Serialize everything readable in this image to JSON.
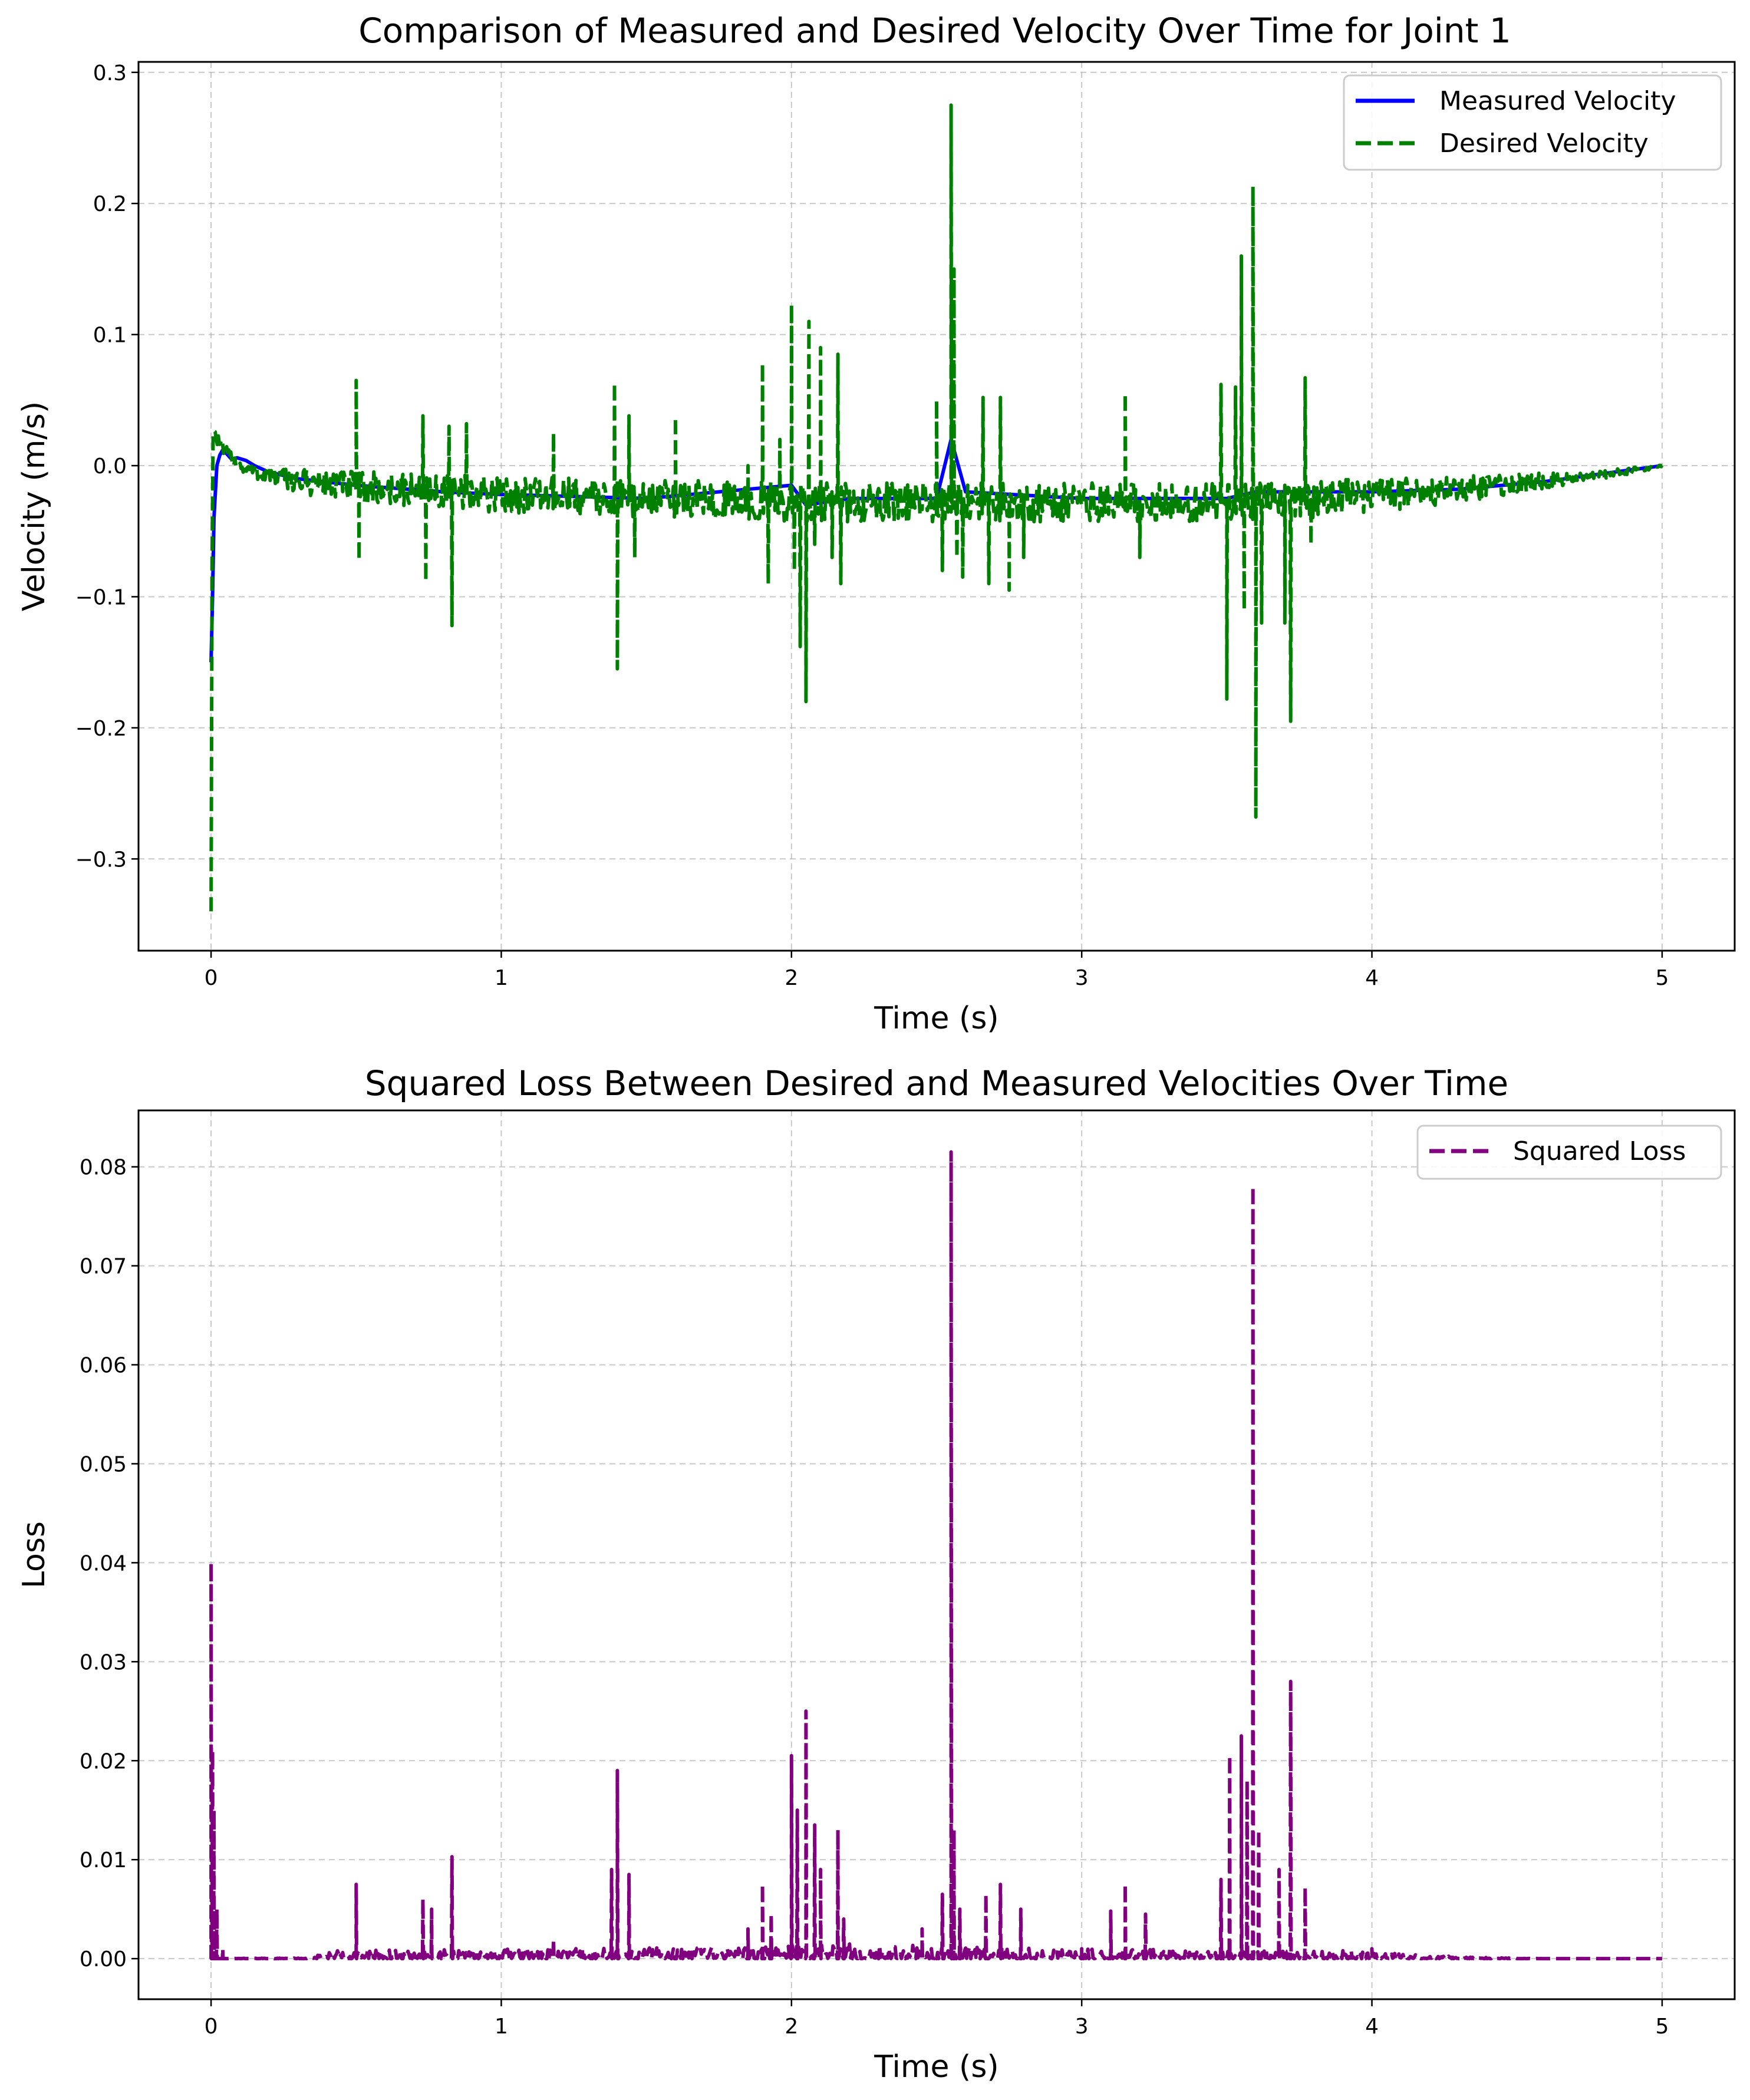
{
  "chart_data": [
    {
      "type": "line",
      "title": "Comparison of Measured and Desired Velocity Over Time for Joint 1",
      "xlabel": "Time (s)",
      "ylabel": "Velocity (m/s)",
      "xlim": [
        -0.25,
        5.25
      ],
      "ylim": [
        -0.37,
        0.308
      ],
      "xticks": [
        0,
        1,
        2,
        3,
        4,
        5
      ],
      "xtick_labels": [
        "0",
        "1",
        "2",
        "3",
        "4",
        "5"
      ],
      "yticks": [
        -0.3,
        -0.2,
        -0.1,
        0.0,
        0.1,
        0.2,
        0.3
      ],
      "ytick_labels": [
        "−0.3",
        "−0.2",
        "−0.1",
        "0.0",
        "0.1",
        "0.2",
        "0.3"
      ],
      "grid": true,
      "legend_position": "top-right",
      "series": [
        {
          "name": "Measured Velocity",
          "color": "#0000ff",
          "style": "solid",
          "x": [
            0.0,
            0.005,
            0.01,
            0.02,
            0.03,
            0.04,
            0.05,
            0.07,
            0.09,
            0.12,
            0.15,
            0.2,
            0.3,
            0.5,
            0.8,
            1.0,
            1.5,
            2.0,
            2.05,
            2.2,
            2.5,
            2.55,
            2.6,
            3.0,
            3.5,
            3.6,
            4.0,
            4.3,
            4.6,
            4.8,
            5.0
          ],
          "y": [
            -0.15,
            -0.1,
            -0.04,
            0.0,
            0.008,
            0.012,
            0.01,
            0.005,
            0.006,
            0.004,
            0.0,
            -0.005,
            -0.01,
            -0.015,
            -0.02,
            -0.022,
            -0.025,
            -0.015,
            -0.03,
            -0.025,
            -0.025,
            0.02,
            -0.02,
            -0.025,
            -0.025,
            -0.02,
            -0.02,
            -0.018,
            -0.012,
            -0.006,
            0.0
          ]
        },
        {
          "name": "Desired Velocity",
          "color": "#008000",
          "style": "dashed",
          "base": [
            [
              0.0,
              -0.34
            ],
            [
              0.005,
              0.03
            ],
            [
              0.02,
              0.02
            ],
            [
              0.05,
              0.01
            ],
            [
              0.1,
              0.0
            ],
            [
              0.15,
              -0.005
            ],
            [
              0.3,
              -0.012
            ],
            [
              0.6,
              -0.018
            ],
            [
              1.0,
              -0.022
            ],
            [
              1.5,
              -0.025
            ],
            [
              2.0,
              -0.028
            ],
            [
              2.5,
              -0.028
            ],
            [
              3.0,
              -0.028
            ],
            [
              3.5,
              -0.028
            ],
            [
              3.8,
              -0.026
            ],
            [
              4.0,
              -0.023
            ],
            [
              4.2,
              -0.02
            ],
            [
              4.5,
              -0.014
            ],
            [
              4.8,
              -0.007
            ],
            [
              5.0,
              0.0
            ]
          ],
          "noise": [
            [
              0.0,
              0.005
            ],
            [
              0.2,
              0.006
            ],
            [
              0.4,
              0.012
            ],
            [
              1.0,
              0.014
            ],
            [
              2.0,
              0.015
            ],
            [
              3.0,
              0.015
            ],
            [
              3.9,
              0.014
            ],
            [
              4.3,
              0.01
            ],
            [
              4.7,
              0.005
            ],
            [
              5.0,
              0.001
            ]
          ],
          "spikes": [
            [
              0.5,
              0.065
            ],
            [
              0.51,
              -0.072
            ],
            [
              0.73,
              0.038
            ],
            [
              0.74,
              -0.088
            ],
            [
              0.82,
              0.03
            ],
            [
              0.83,
              -0.122
            ],
            [
              0.88,
              0.032
            ],
            [
              1.18,
              0.025
            ],
            [
              1.39,
              0.063
            ],
            [
              1.4,
              -0.155
            ],
            [
              1.44,
              0.038
            ],
            [
              1.46,
              -0.07
            ],
            [
              1.6,
              0.037
            ],
            [
              1.85,
              0.0
            ],
            [
              1.9,
              0.078
            ],
            [
              1.92,
              -0.09
            ],
            [
              1.96,
              0.02
            ],
            [
              2.0,
              0.123
            ],
            [
              2.01,
              -0.08
            ],
            [
              2.03,
              -0.138
            ],
            [
              2.05,
              -0.18
            ],
            [
              2.06,
              0.11
            ],
            [
              2.08,
              -0.06
            ],
            [
              2.1,
              0.09
            ],
            [
              2.14,
              -0.07
            ],
            [
              2.16,
              0.085
            ],
            [
              2.17,
              -0.09
            ],
            [
              2.5,
              0.05
            ],
            [
              2.52,
              -0.08
            ],
            [
              2.55,
              0.275
            ],
            [
              2.56,
              0.15
            ],
            [
              2.57,
              -0.07
            ],
            [
              2.59,
              -0.085
            ],
            [
              2.66,
              0.052
            ],
            [
              2.68,
              -0.09
            ],
            [
              2.72,
              0.052
            ],
            [
              2.75,
              -0.095
            ],
            [
              2.8,
              -0.07
            ],
            [
              3.15,
              0.055
            ],
            [
              3.2,
              -0.07
            ],
            [
              3.48,
              0.062
            ],
            [
              3.5,
              -0.178
            ],
            [
              3.53,
              0.06
            ],
            [
              3.55,
              0.16
            ],
            [
              3.56,
              -0.11
            ],
            [
              3.59,
              0.213
            ],
            [
              3.6,
              -0.268
            ],
            [
              3.62,
              -0.12
            ],
            [
              3.7,
              -0.12
            ],
            [
              3.72,
              -0.195
            ],
            [
              3.77,
              0.067
            ],
            [
              3.79,
              -0.06
            ]
          ]
        }
      ]
    },
    {
      "type": "line",
      "title": "Squared Loss Between Desired and Measured Velocities Over Time",
      "xlabel": "Time (s)",
      "ylabel": "Loss",
      "xlim": [
        -0.25,
        5.25
      ],
      "ylim": [
        -0.0041,
        0.0857
      ],
      "xticks": [
        0,
        1,
        2,
        3,
        4,
        5
      ],
      "xtick_labels": [
        "0",
        "1",
        "2",
        "3",
        "4",
        "5"
      ],
      "yticks": [
        0.0,
        0.01,
        0.02,
        0.03,
        0.04,
        0.05,
        0.06,
        0.07,
        0.08
      ],
      "ytick_labels": [
        "0.00",
        "0.01",
        "0.02",
        "0.03",
        "0.04",
        "0.05",
        "0.06",
        "0.07",
        "0.08"
      ],
      "grid": true,
      "legend_position": "top-right",
      "series": [
        {
          "name": "Squared Loss",
          "color": "#800080",
          "style": "dashed",
          "base": [
            [
              0.0,
              0.0
            ],
            [
              5.0,
              0.0
            ]
          ],
          "noise": [
            [
              0.0,
              0.0
            ],
            [
              0.35,
              0.0001
            ],
            [
              0.4,
              0.0008
            ],
            [
              1.9,
              0.0012
            ],
            [
              2.2,
              0.0015
            ],
            [
              2.9,
              0.001
            ],
            [
              3.9,
              0.0008
            ],
            [
              4.3,
              0.0002
            ],
            [
              4.6,
              0.0
            ],
            [
              5.0,
              0.0
            ]
          ],
          "spikes": [
            [
              0.0,
              0.04
            ],
            [
              0.005,
              0.021
            ],
            [
              0.01,
              0.015
            ],
            [
              0.02,
              0.005
            ],
            [
              0.04,
              0.001
            ],
            [
              0.5,
              0.0075
            ],
            [
              0.73,
              0.006
            ],
            [
              0.76,
              0.005
            ],
            [
              0.83,
              0.0103
            ],
            [
              1.18,
              0.002
            ],
            [
              1.38,
              0.009
            ],
            [
              1.4,
              0.019
            ],
            [
              1.44,
              0.0085
            ],
            [
              1.85,
              0.003
            ],
            [
              1.9,
              0.0075
            ],
            [
              1.93,
              0.0045
            ],
            [
              2.0,
              0.0205
            ],
            [
              2.02,
              0.015
            ],
            [
              2.05,
              0.025
            ],
            [
              2.08,
              0.0135
            ],
            [
              2.1,
              0.009
            ],
            [
              2.16,
              0.013
            ],
            [
              2.18,
              0.004
            ],
            [
              2.45,
              0.003
            ],
            [
              2.52,
              0.0065
            ],
            [
              2.55,
              0.0815
            ],
            [
              2.56,
              0.013
            ],
            [
              2.58,
              0.005
            ],
            [
              2.67,
              0.0065
            ],
            [
              2.72,
              0.0075
            ],
            [
              2.79,
              0.005
            ],
            [
              3.0,
              0.001
            ],
            [
              3.1,
              0.0048
            ],
            [
              3.15,
              0.0075
            ],
            [
              3.22,
              0.0045
            ],
            [
              3.48,
              0.008
            ],
            [
              3.51,
              0.0205
            ],
            [
              3.55,
              0.0225
            ],
            [
              3.57,
              0.018
            ],
            [
              3.59,
              0.078
            ],
            [
              3.61,
              0.013
            ],
            [
              3.68,
              0.009
            ],
            [
              3.72,
              0.028
            ],
            [
              3.77,
              0.0072
            ],
            [
              4.0,
              0.001
            ]
          ]
        }
      ]
    }
  ]
}
